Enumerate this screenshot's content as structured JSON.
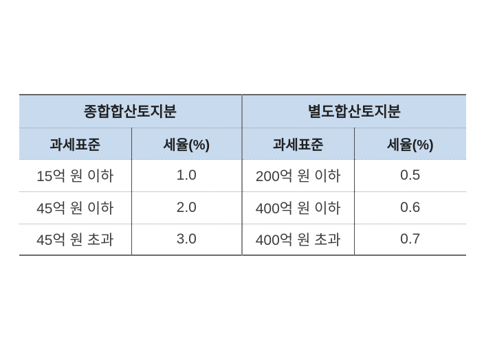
{
  "chart_data": {
    "type": "table",
    "column_groups": [
      "종합합산토지분",
      "별도합산토지분"
    ],
    "columns": [
      "과세표준",
      "세율(%)",
      "과세표준",
      "세율(%)"
    ],
    "rows": [
      [
        "15억 원 이하",
        "1.0",
        "200억 원 이하",
        "0.5"
      ],
      [
        "45억 원 이하",
        "2.0",
        "400억 원 이하",
        "0.6"
      ],
      [
        "45억 원 초과",
        "3.0",
        "400억 원 초과",
        "0.7"
      ]
    ],
    "layout": {
      "header_rows": 2,
      "grid": "dotted horizontal separators, solid top/bottom border, vertical dividers between columns"
    }
  },
  "colors": {
    "header_background": "#c8daee",
    "outer_border": "#666666",
    "group_divider": "#8a8a8a",
    "sub_divider": "#4a4a4a",
    "dotted_separator": "#999999",
    "header_text": "#1f1f1f",
    "body_text": "#3d3d3d",
    "page_background": "#ffffff"
  }
}
